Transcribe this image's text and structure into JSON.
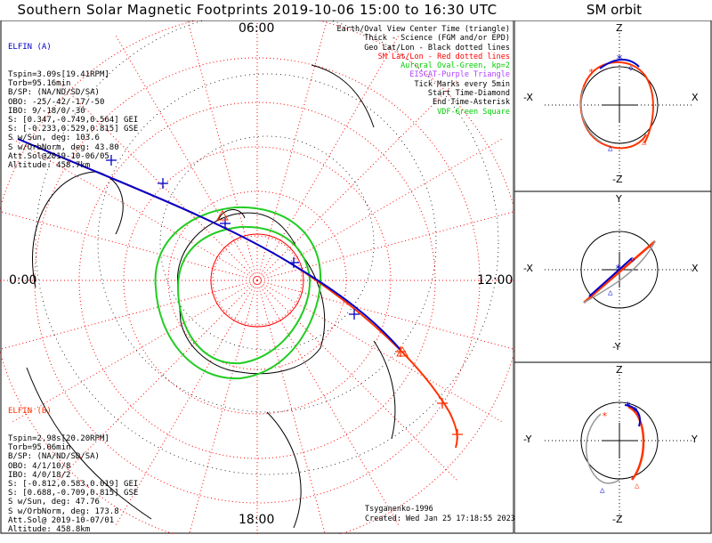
{
  "header": {
    "title": "Southern Solar Magnetic Footprints 2019-10-06 15:00 to 16:30 UTC",
    "sm_title": "SM orbit"
  },
  "mlt_labels": {
    "top": "06:00",
    "left": "0:00",
    "right": "12:00",
    "bottom": "18:00"
  },
  "elfin_a": {
    "name": "ELFIN (A)",
    "lines": [
      "Tspin=3.09s[19.41RPM]",
      "Torb=95.16min",
      "B/SP: (NA/ND/SD/SA)",
      "OBO: -25/-42/-17/-50",
      "IBO: 9/-18/0/-30",
      "S: [0.347,-0.749,0.564] GEI",
      "S: [-0.233,0.529,0.815] GSE",
      "S w/Sun, deg: 103.6",
      "S w/OrbNorm, deg: 43.80",
      "Att.Sol@2019-10-06/05",
      "Altitude: 458.7km"
    ]
  },
  "elfin_b": {
    "name": "ELFIN (B)",
    "lines": [
      "Tspin=2.98s[20.20RPM]",
      "Torb=95.06min",
      "B/SP: (NA/ND/SD/SA)",
      "OBO: 4/1/10/8",
      "IBO: 4/0/18/2",
      "S: [-0.812,0.583,0.019] GEI",
      "S: [0.688,-0.709,0.815] GSE",
      "S w/Sun, deg: 47.76",
      "S w/OrbNorm, deg: 173.8",
      "Att.Sol@ 2019-10-07/01",
      "Altitude: 458.8km"
    ]
  },
  "legend": [
    {
      "text": "Earth/Oval View Center Time (triangle)",
      "color": "#000000"
    },
    {
      "text": "Thick - Science (FGM and/or EPD)",
      "color": "#000000"
    },
    {
      "text": "Geo Lat/Lon - Black dotted lines",
      "color": "#000000"
    },
    {
      "text": "SM Lat/Lon - Red dotted lines",
      "color": "#ff0000"
    },
    {
      "text": "Auroral Oval-Green, kp=2",
      "color": "#00cc00"
    },
    {
      "text": "EISCAT-Purple Triangle",
      "color": "#b040ff"
    },
    {
      "text": "Tick Marks every 5min",
      "color": "#000000"
    },
    {
      "text": "Start Time-Diamond",
      "color": "#000000"
    },
    {
      "text": "End Time-Asterisk",
      "color": "#000000"
    },
    {
      "text": "VDF-Green Square",
      "color": "#00cc00"
    }
  ],
  "credit": {
    "author": "Tsyganenko-1996",
    "created": "Created: Wed Jan 25 17:18:55 2023"
  },
  "sm_panels": [
    {
      "top": "Z",
      "bottom": "-Z",
      "left": "-X",
      "right": "X"
    },
    {
      "top": "Y",
      "bottom": "-Y",
      "left": "-X",
      "right": "X"
    },
    {
      "top": "Z",
      "bottom": "-Z",
      "left": "-Y",
      "right": "Y"
    }
  ],
  "colors": {
    "elfin_a": "#0000cc",
    "elfin_b": "#ff3300",
    "oval": "#22cc22",
    "sm_grid": "#ff0000"
  },
  "chart_data": {
    "type": "scatter",
    "projection": "polar, southern hemisphere, MLT",
    "series": [
      {
        "name": "ELFIN (A)"
      },
      {
        "name": "ELFIN (B)"
      }
    ]
  }
}
